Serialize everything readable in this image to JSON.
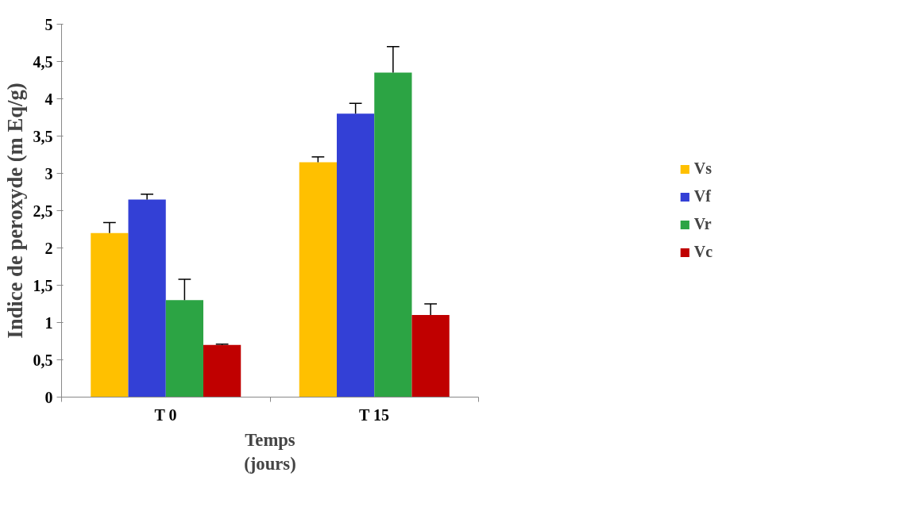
{
  "chart_data": {
    "type": "bar",
    "xlabel": "Temps\n(jours)",
    "ylabel": "Indice de peroxyde (m Eq/g)",
    "categories": [
      "T 0",
      "T 15"
    ],
    "series": [
      {
        "name": "Vs",
        "color": "#ffc000",
        "values": [
          2.2,
          3.15
        ],
        "errors": [
          [
            2.2,
            2.34
          ],
          [
            3.15,
            3.22
          ]
        ]
      },
      {
        "name": "Vf",
        "color": "#3340d6",
        "values": [
          2.65,
          3.8
        ],
        "errors": [
          [
            2.65,
            2.72
          ],
          [
            3.8,
            3.94
          ]
        ]
      },
      {
        "name": "Vr",
        "color": "#2ca444",
        "values": [
          1.3,
          4.35
        ],
        "errors": [
          [
            1.3,
            1.58
          ],
          [
            4.35,
            4.7
          ]
        ]
      },
      {
        "name": "Vc",
        "color": "#c00000",
        "values": [
          0.7,
          1.1
        ],
        "errors": [
          [
            0.7,
            0.71
          ],
          [
            1.1,
            1.25
          ]
        ]
      }
    ],
    "ylim": [
      0,
      5
    ],
    "yticks": [
      0,
      {
        "value": 0.5,
        "label": "0,5"
      },
      1,
      {
        "value": 1.5,
        "label": "1,5"
      },
      2,
      {
        "value": 2.5,
        "label": "2,5"
      },
      3,
      {
        "value": 3.5,
        "label": "3,5"
      },
      4,
      {
        "value": 4.5,
        "label": "4,5"
      },
      5
    ],
    "grid": false,
    "legend": "right"
  }
}
